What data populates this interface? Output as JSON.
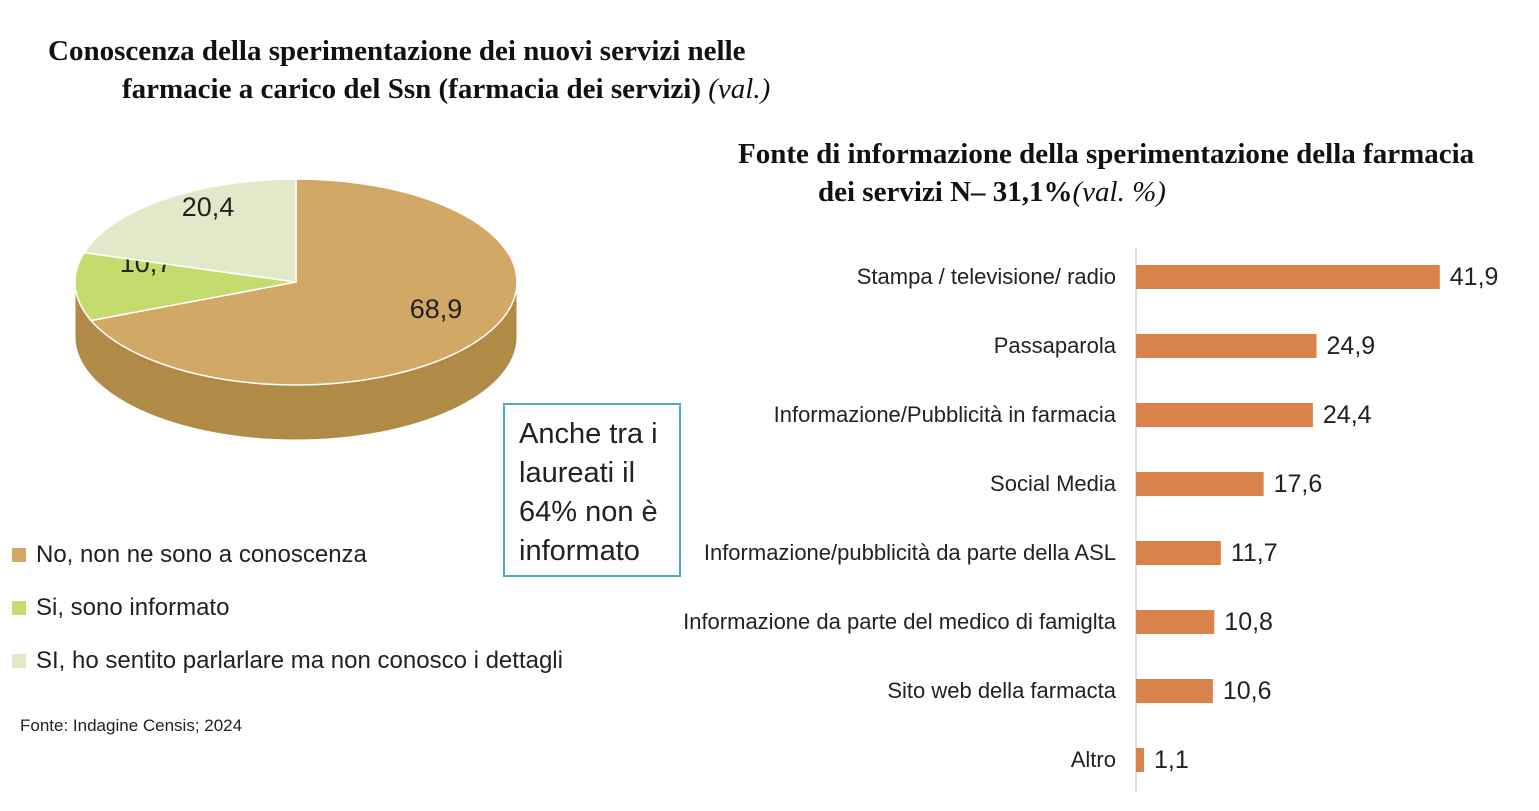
{
  "pie_title": {
    "line1": "Conoscenza della sperimentazione dei nuovi servizi nelle",
    "line2": "farmacie a carico del Ssn (farmacia dei servizi)",
    "unit": "(val.)"
  },
  "bar_title": {
    "line1": "Fonte di informazione della sperimentazione della farmacia",
    "line2": "dei servizi N– 31,1%",
    "unit": "(val. %)"
  },
  "note": "Anche tra i laureati il 64% non è informato",
  "source": "Fonte: Indagine Censis; 2024",
  "colors": {
    "pie": [
      "#d1a865",
      "#c4dc6e",
      "#e2e9c8"
    ],
    "pie_side": "#b08b47",
    "bar": "#d9834b",
    "note_border": "#4bacc6"
  },
  "chart_data": [
    {
      "type": "pie",
      "title": "Conoscenza della sperimentazione dei nuovi servizi nelle farmacie a carico del Ssn (farmacia dei servizi) (val.)",
      "labels": [
        "No, non ne sono a conoscenza",
        "Si, sono informato",
        "SI, ho sentito parlarlare ma non conosco i dettagli"
      ],
      "values": [
        68.9,
        10.7,
        20.4
      ],
      "value_labels": [
        "68,9",
        "10,7",
        "20,4"
      ],
      "legend": "bottom-left",
      "style": "3d"
    },
    {
      "type": "bar",
      "orientation": "horizontal",
      "title": "Fonte di informazione della sperimentazione della farmacia dei servizi N– 31,1% (val. %)",
      "categories": [
        "Stampa / televisione/ radio",
        "Passaparola",
        "Informazione/Pubblicità in farmacia",
        "Social Media",
        "Informazione/pubblicità da parte della ASL",
        "Informazione da parte del medico di famiglta",
        "Sito web della farmacta",
        "Altro"
      ],
      "values": [
        41.9,
        24.9,
        24.4,
        17.6,
        11.7,
        10.8,
        10.6,
        1.1
      ],
      "value_labels": [
        "41,9",
        "24,9",
        "24,4",
        "17,6",
        "11,7",
        "10,8",
        "10,6",
        "1,1"
      ],
      "xlim": [
        0,
        45
      ],
      "grid": false
    }
  ]
}
